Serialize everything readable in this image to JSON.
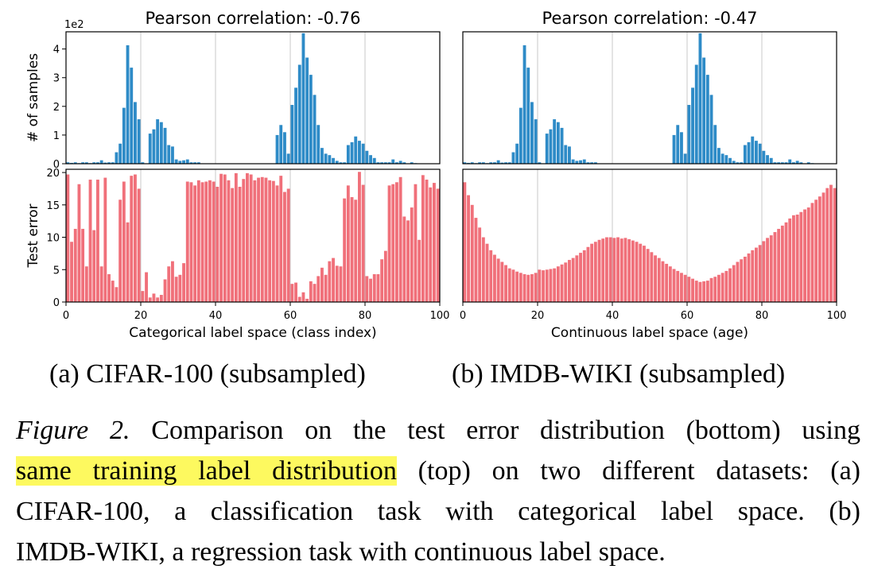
{
  "chart_data": [
    {
      "type": "bar",
      "panel": "a",
      "title": "Pearson correlation: -0.76",
      "xlabel": "Categorical label space (class index)",
      "x_ticks": [
        "0",
        "20",
        "40",
        "60",
        "80",
        "100"
      ],
      "xlim": [
        0,
        100
      ],
      "top": {
        "ylabel": "# of samples",
        "y_offset_label": "1e2",
        "y_ticks": [
          "0",
          "1",
          "2",
          "3",
          "4"
        ],
        "ylim": [
          0,
          4.6
        ],
        "color": "#2e8bc7",
        "values": [
          0.05,
          0.03,
          0.05,
          0.02,
          0.05,
          0.05,
          0.02,
          0.05,
          0.05,
          0.12,
          0.04,
          0.05,
          0.05,
          0.4,
          0.7,
          1.95,
          4.13,
          3.35,
          2.15,
          1.55,
          0.05,
          0,
          1.05,
          1.2,
          1.55,
          1.45,
          1.25,
          0.65,
          0.6,
          0.15,
          0.1,
          0.12,
          0.15,
          0.05,
          0.05,
          0.05,
          0,
          0,
          0,
          0,
          0,
          0,
          0,
          0,
          0,
          0,
          0,
          0,
          0,
          0,
          0,
          0,
          0,
          0,
          0,
          0,
          1,
          1.35,
          1.1,
          0.35,
          2.05,
          2.65,
          3.45,
          4.55,
          3.7,
          3.1,
          2.4,
          1.35,
          0.55,
          0.35,
          0.3,
          0.2,
          0.1,
          0.05,
          0.05,
          0.65,
          0.75,
          0.95,
          0.8,
          0.7,
          0.45,
          0.3,
          0.2,
          0.05,
          0.05,
          0.05,
          0.05,
          0.15,
          0.05,
          0.1,
          0.05,
          0,
          0.05,
          0.02,
          0,
          0,
          0,
          0,
          0,
          0
        ]
      },
      "bottom": {
        "ylabel": "Test error",
        "y_ticks": [
          "0",
          "5",
          "10",
          "15",
          "20"
        ],
        "ylim": [
          0,
          20.5
        ],
        "color": "#f0707a",
        "values": [
          19.7,
          9.3,
          11.3,
          18.2,
          11.3,
          5.5,
          18.9,
          11.1,
          18.9,
          5.5,
          19.2,
          4.3,
          3.3,
          2.3,
          15.8,
          18.6,
          12.3,
          19.5,
          19.7,
          17.5,
          1.7,
          4.6,
          0.7,
          1.3,
          0.7,
          1.1,
          3.5,
          5.5,
          6.3,
          3.9,
          4.2,
          6.0,
          18.6,
          18.5,
          18.0,
          18.8,
          18.5,
          18.6,
          18.8,
          18.6,
          17.8,
          19.8,
          19.7,
          18.8,
          17.6,
          19.9,
          17.8,
          19.0,
          19.9,
          19.7,
          18.8,
          19.2,
          19.3,
          19.2,
          18.8,
          18.7,
          18.0,
          19.5,
          17.0,
          17.5,
          2.8,
          3.0,
          0.8,
          1.5,
          0.5,
          3.2,
          2.8,
          4.0,
          5.3,
          4.2,
          6.3,
          6.8,
          5.6,
          5.5,
          16.0,
          18.0,
          16.2,
          15.8,
          20.1,
          18.1,
          4.0,
          3.6,
          4.3,
          4.3,
          6.6,
          7.9,
          18.0,
          18.2,
          18.5,
          19.3,
          13.2,
          12.6,
          14.6,
          18.2,
          9.6,
          19.6,
          18.9,
          17.7,
          18.4,
          17.5
        ]
      }
    },
    {
      "type": "bar",
      "panel": "b",
      "title": "Pearson correlation: -0.47",
      "xlabel": "Continuous label space (age)",
      "x_ticks": [
        "0",
        "20",
        "40",
        "60",
        "80",
        "100"
      ],
      "xlim": [
        0,
        100
      ],
      "top": {
        "ylabel": "",
        "y_offset_label": "",
        "y_ticks": [],
        "ylim": [
          0,
          4.6
        ],
        "color": "#2e8bc7",
        "values": [
          0.05,
          0.03,
          0.05,
          0.02,
          0.05,
          0.05,
          0.02,
          0.05,
          0.05,
          0.12,
          0.04,
          0.05,
          0.05,
          0.4,
          0.7,
          1.95,
          4.13,
          3.35,
          2.15,
          1.55,
          0.05,
          0,
          1.05,
          1.2,
          1.55,
          1.45,
          1.25,
          0.65,
          0.6,
          0.15,
          0.1,
          0.12,
          0.15,
          0.05,
          0.05,
          0.05,
          0,
          0,
          0,
          0,
          0,
          0,
          0,
          0,
          0,
          0,
          0,
          0,
          0,
          0,
          0,
          0,
          0,
          0,
          0,
          0,
          1,
          1.35,
          1.1,
          0.35,
          2.05,
          2.65,
          3.45,
          4.55,
          3.7,
          3.1,
          2.4,
          1.35,
          0.55,
          0.35,
          0.3,
          0.2,
          0.1,
          0.05,
          0.05,
          0.65,
          0.75,
          0.95,
          0.8,
          0.7,
          0.45,
          0.3,
          0.2,
          0.05,
          0.05,
          0.05,
          0.05,
          0.15,
          0.05,
          0.1,
          0.05,
          0,
          0.05,
          0.02,
          0,
          0,
          0,
          0,
          0,
          0
        ]
      },
      "bottom": {
        "ylabel": "",
        "y_ticks": [],
        "ylim": [
          0,
          20.5
        ],
        "color": "#f0707a",
        "values": [
          18.5,
          16.5,
          15.0,
          13.0,
          11.5,
          10.0,
          9.0,
          8.0,
          7.3,
          6.7,
          6.2,
          5.7,
          5.2,
          5.0,
          4.7,
          4.5,
          4.3,
          4.2,
          4.3,
          4.5,
          5.0,
          4.9,
          5.0,
          5.1,
          5.2,
          5.5,
          5.8,
          6.1,
          6.5,
          6.8,
          7.2,
          7.6,
          8.0,
          8.5,
          9.0,
          9.3,
          9.6,
          9.8,
          10.0,
          10.0,
          9.9,
          10.0,
          9.8,
          9.9,
          9.7,
          9.5,
          9.3,
          9.0,
          8.7,
          8.2,
          7.7,
          7.2,
          6.8,
          6.3,
          5.9,
          5.5,
          5.1,
          4.8,
          4.5,
          4.2,
          3.9,
          3.6,
          3.3,
          3.1,
          3.2,
          3.3,
          3.7,
          3.9,
          4.2,
          4.5,
          4.8,
          5.2,
          5.7,
          6.2,
          6.6,
          7.0,
          7.5,
          8.0,
          8.4,
          8.8,
          9.4,
          9.9,
          10.3,
          10.8,
          11.3,
          11.8,
          12.3,
          12.9,
          13.4,
          13.5,
          13.9,
          14.3,
          14.6,
          15.3,
          15.8,
          16.3,
          16.9,
          17.6,
          18.1,
          17.6
        ]
      }
    }
  ],
  "subcaptions": {
    "a": "(a) CIFAR-100 (subsampled)",
    "b": "(b) IMDB-WIKI (subsampled)"
  },
  "caption": {
    "label": "Figure 2.",
    "text1": " Comparison on the test error distribution (bottom) using",
    "highlight": "same training label distribution",
    "text2": " (top) on two different datasets: (a)",
    "line3": "CIFAR-100, a classification task with categorical label space. (b)",
    "line4": "IMDB-WIKI, a regression task with continuous label space."
  }
}
